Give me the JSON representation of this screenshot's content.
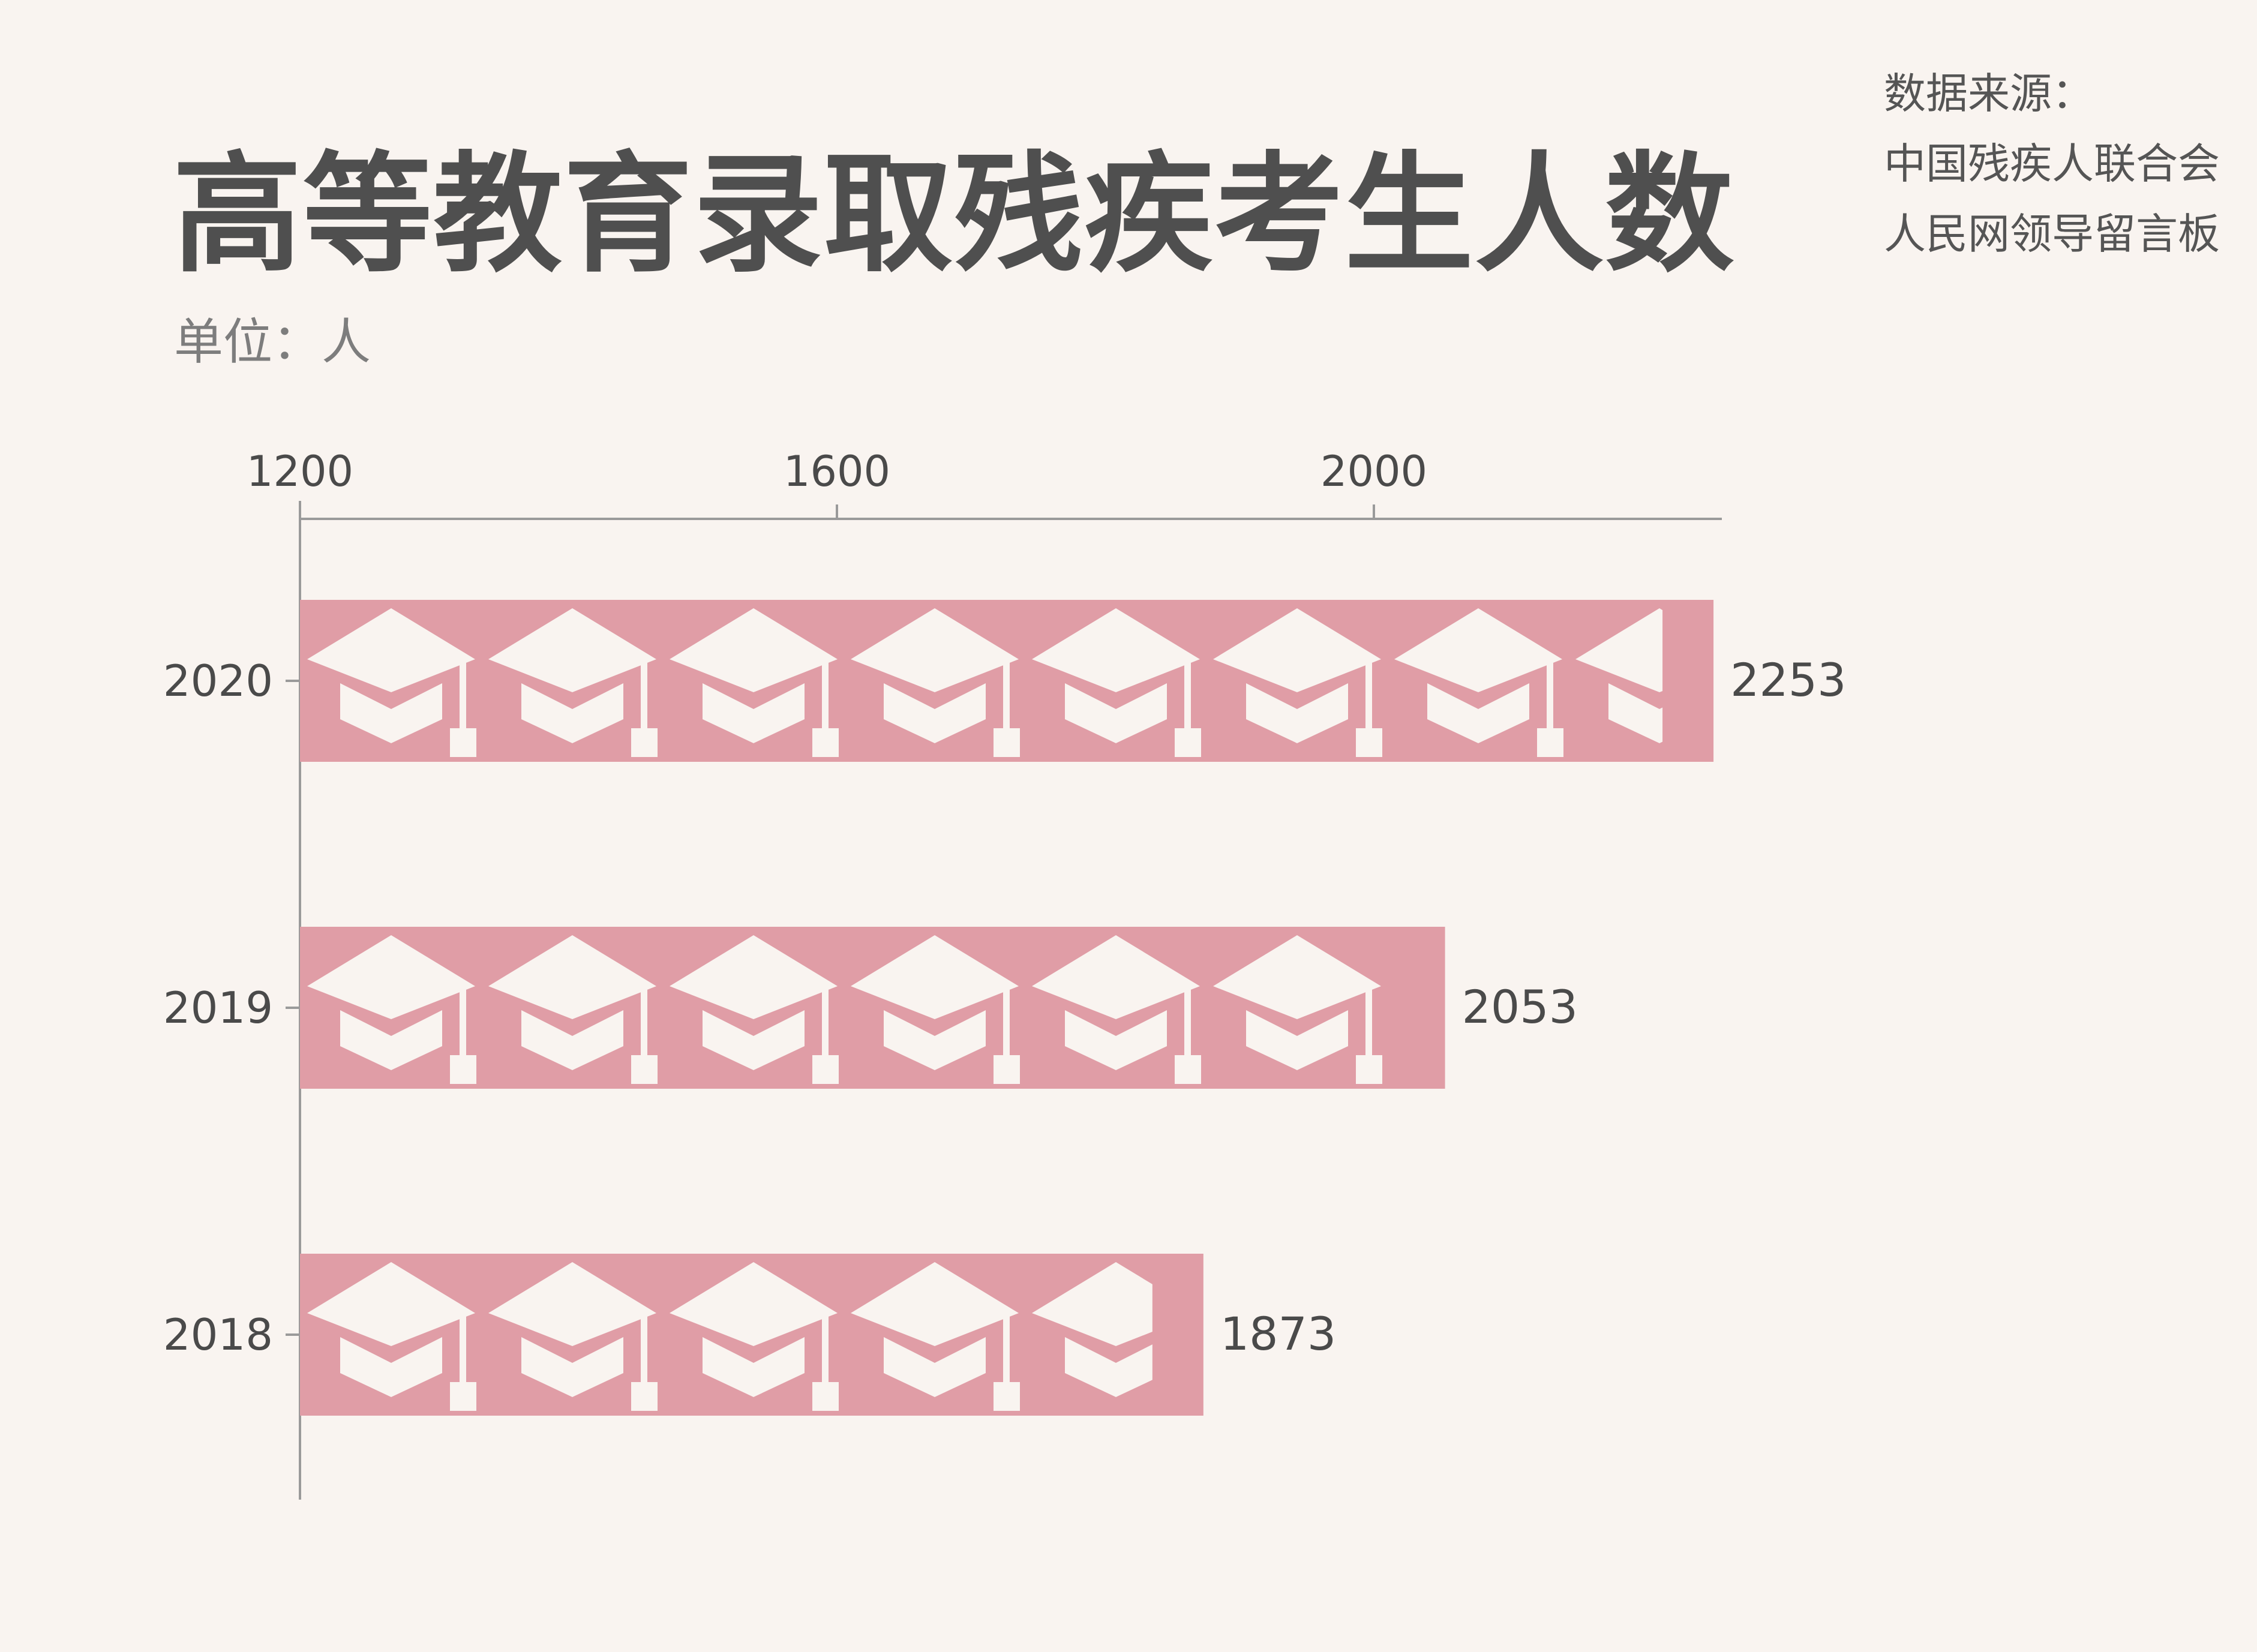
{
  "title": "高等教育录取残疾考生人数",
  "unit_label": "单位：人",
  "source": {
    "heading": "数据来源：",
    "lines": [
      "中国残疾人联合会",
      "人民网领导留言板"
    ]
  },
  "colors": {
    "background": "#f9f4f0",
    "bar": "#e09da6",
    "icon": "#f9f4f0",
    "axis": "#9a9a9a",
    "text": "#4a4a4a"
  },
  "icon_name": "graduation-cap-icon",
  "chart_data": {
    "type": "bar",
    "orientation": "horizontal",
    "title": "高等教育录取残疾考生人数",
    "unit": "人",
    "categories": [
      "2020",
      "2019",
      "2018"
    ],
    "values": [
      2253,
      2053,
      1873
    ],
    "data_labels": [
      "2253",
      "2053",
      "1873"
    ],
    "x_ticks": [
      "1200",
      "1600",
      "2000"
    ],
    "x_tick_values": [
      1200,
      1600,
      2000
    ],
    "xlim": [
      1200,
      2460
    ],
    "axis_position": "top",
    "grid": false,
    "legend": "none"
  }
}
